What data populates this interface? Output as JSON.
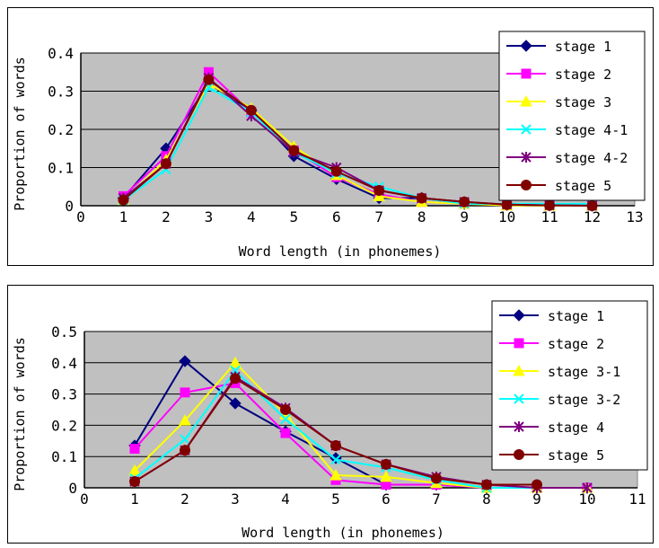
{
  "chart_data": [
    {
      "type": "line",
      "xlabel": "Word length (in phonemes)",
      "ylabel": "Proportion of words",
      "xlim": [
        0,
        13
      ],
      "ylim": [
        0,
        0.4
      ],
      "xticks": [
        "0",
        "1",
        "2",
        "3",
        "4",
        "5",
        "6",
        "7",
        "8",
        "9",
        "10",
        "11",
        "12",
        "13"
      ],
      "yticks": [
        "0",
        "0.1",
        "0.2",
        "0.3",
        "0.4"
      ],
      "x": [
        1,
        2,
        3,
        4,
        5,
        6,
        7,
        8,
        9,
        10,
        11,
        12
      ],
      "legend_position": "top-right",
      "plot_background": "#c0c0c0",
      "grid": "horizontal",
      "series": [
        {
          "name": "stage 1",
          "color": "#000080",
          "marker": "diamond",
          "values": [
            0.02,
            0.15,
            0.32,
            0.25,
            0.13,
            0.07,
            0.02,
            0.02,
            0.005,
            0.002,
            0.001,
            0.0
          ]
        },
        {
          "name": "stage 2",
          "color": "#ff00ff",
          "marker": "square",
          "values": [
            0.025,
            0.13,
            0.35,
            0.245,
            0.145,
            0.075,
            0.03,
            0.01,
            0.005,
            0.002,
            0.001,
            0.0
          ]
        },
        {
          "name": "stage 3",
          "color": "#ffff00",
          "marker": "triangle",
          "values": [
            0.015,
            0.12,
            0.32,
            0.255,
            0.155,
            0.08,
            0.025,
            0.01,
            0.005,
            0.001,
            0.0,
            0.0
          ]
        },
        {
          "name": "stage 4-1",
          "color": "#00ffff",
          "marker": "x",
          "values": [
            0.015,
            0.095,
            0.31,
            0.245,
            0.14,
            0.085,
            0.05,
            0.02,
            0.005,
            0.005,
            0.005,
            0.005
          ]
        },
        {
          "name": "stage 4-2",
          "color": "#800080",
          "marker": "star",
          "values": [
            0.02,
            0.11,
            0.335,
            0.235,
            0.14,
            0.1,
            0.04,
            0.02,
            0.01,
            0.003,
            0.001,
            0.0
          ]
        },
        {
          "name": "stage 5",
          "color": "#800000",
          "marker": "circle",
          "values": [
            0.015,
            0.11,
            0.33,
            0.25,
            0.145,
            0.09,
            0.04,
            0.02,
            0.01,
            0.003,
            0.001,
            0.0
          ]
        }
      ]
    },
    {
      "type": "line",
      "xlabel": "Word length (in phonemes)",
      "ylabel": "Proportion of words",
      "xlim": [
        0,
        11
      ],
      "ylim": [
        0,
        0.5
      ],
      "xticks": [
        "0",
        "1",
        "2",
        "3",
        "4",
        "5",
        "6",
        "7",
        "8",
        "9",
        "10",
        "11"
      ],
      "yticks": [
        "0",
        "0.1",
        "0.2",
        "0.3",
        "0.4",
        "0.5"
      ],
      "x": [
        1,
        2,
        3,
        4,
        5,
        6,
        7,
        8,
        9,
        10
      ],
      "legend_position": "top-right",
      "plot_background": "#c0c0c0",
      "grid": "horizontal",
      "series": [
        {
          "name": "stage 1",
          "color": "#000080",
          "marker": "diamond",
          "values": [
            0.135,
            0.405,
            0.27,
            0.18,
            0.095,
            0.01,
            0.01,
            0.0,
            0.0,
            0.0
          ]
        },
        {
          "name": "stage 2",
          "color": "#ff00ff",
          "marker": "square",
          "values": [
            0.125,
            0.305,
            0.335,
            0.175,
            0.025,
            0.01,
            0.01,
            0.0,
            0.0,
            0.0
          ]
        },
        {
          "name": "stage 3-1",
          "color": "#ffff00",
          "marker": "triangle",
          "values": [
            0.055,
            0.215,
            0.4,
            0.235,
            0.04,
            0.035,
            0.015,
            0.0,
            0.0,
            0.0
          ]
        },
        {
          "name": "stage 3-2",
          "color": "#00ffff",
          "marker": "x",
          "values": [
            0.03,
            0.155,
            0.375,
            0.22,
            0.09,
            0.065,
            0.025,
            0.0,
            0.0,
            0.0
          ]
        },
        {
          "name": "stage 4",
          "color": "#800080",
          "marker": "star",
          "values": [
            0.02,
            0.12,
            0.355,
            0.255,
            0.135,
            0.075,
            0.035,
            0.01,
            0.0,
            0.0
          ]
        },
        {
          "name": "stage 5",
          "color": "#800000",
          "marker": "circle",
          "values": [
            0.02,
            0.12,
            0.35,
            0.25,
            0.135,
            0.075,
            0.03,
            0.01,
            0.01,
            null
          ]
        }
      ]
    }
  ]
}
